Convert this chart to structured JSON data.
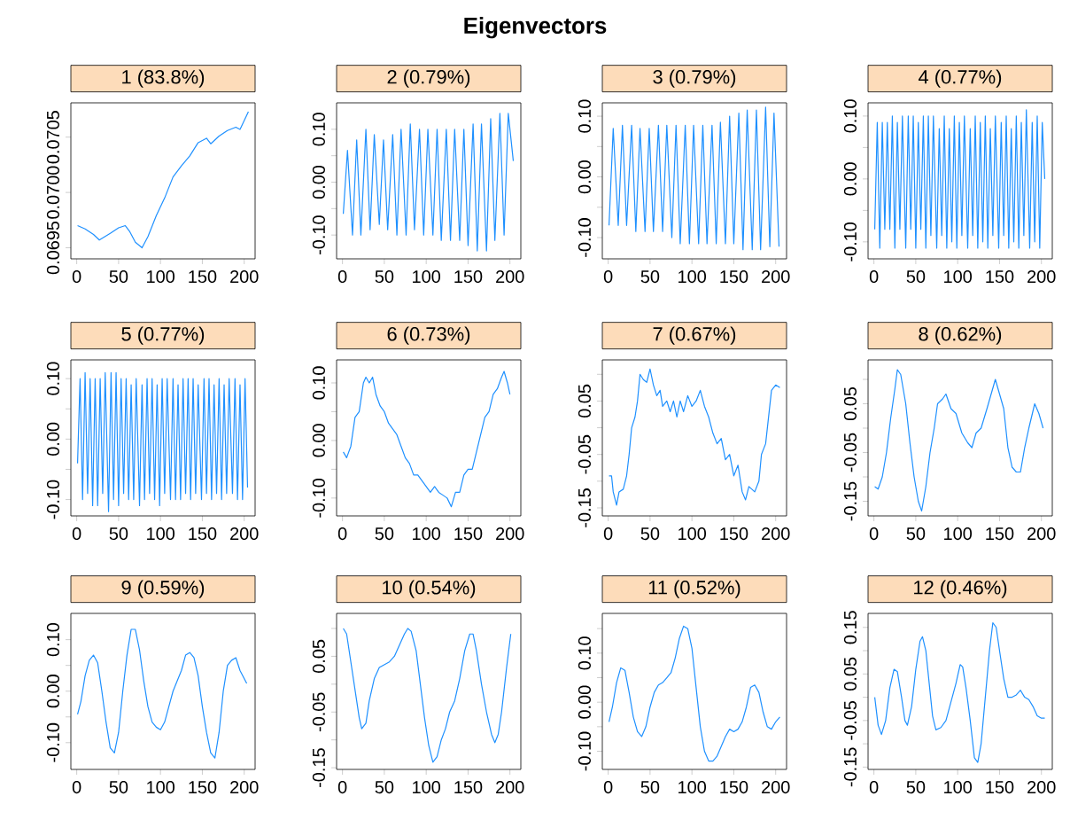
{
  "chart_data": [
    {
      "type": "line",
      "title": "1 (83.8%)",
      "annotations": [
        "Eigenvectors"
      ],
      "color": "#1e90ff",
      "xlim": [
        -7,
        213
      ],
      "xticks": [
        0,
        50,
        100,
        150,
        200
      ],
      "ylim": [
        0.0694,
        0.07081
      ],
      "yticks": [
        0.0695,
        {
          "value": 0.07,
          "label": "0.0700"
        },
        0.0705
      ],
      "x": [
        1,
        10,
        20,
        27,
        40,
        50,
        58,
        63,
        70,
        78,
        85,
        95,
        105,
        115,
        125,
        135,
        145,
        155,
        160,
        170,
        180,
        190,
        195,
        205
      ],
      "values": [
        0.0697,
        0.06967,
        0.06962,
        0.06957,
        0.06963,
        0.06968,
        0.0697,
        0.06965,
        0.06955,
        0.0695,
        0.0696,
        0.06979,
        0.06995,
        0.07014,
        0.07024,
        0.07033,
        0.07045,
        0.07049,
        0.07044,
        0.07051,
        0.07056,
        0.07059,
        0.07057,
        0.07073
      ]
    },
    {
      "type": "line",
      "title": "2 (0.79%)",
      "color": "#1e90ff",
      "xlim": [
        -7,
        213
      ],
      "xticks": [
        0,
        50,
        100,
        150,
        200
      ],
      "ylim": [
        -0.145,
        0.15
      ],
      "yticks": [
        {
          "value": -0.1,
          "label": "-0.10"
        },
        {
          "value": -0.05,
          "label": null
        },
        {
          "value": 0,
          "label": "0.00"
        },
        {
          "value": 0.05,
          "label": null
        },
        {
          "value": 0.1,
          "label": "0.10"
        }
      ],
      "x": [
        1,
        6,
        12,
        17,
        22,
        28,
        33,
        38,
        44,
        49,
        54,
        60,
        65,
        70,
        76,
        81,
        86,
        92,
        97,
        102,
        108,
        113,
        118,
        124,
        129,
        134,
        140,
        145,
        150,
        156,
        161,
        166,
        172,
        177,
        182,
        188,
        193,
        198,
        204
      ],
      "values": [
        -0.06,
        0.06,
        -0.1,
        0.08,
        -0.1,
        0.1,
        -0.09,
        0.09,
        -0.08,
        0.08,
        -0.09,
        0.09,
        -0.1,
        0.1,
        -0.1,
        0.11,
        -0.09,
        0.1,
        -0.1,
        0.1,
        -0.1,
        0.1,
        -0.11,
        0.1,
        -0.11,
        0.1,
        -0.11,
        0.1,
        -0.12,
        0.11,
        -0.13,
        0.11,
        -0.13,
        0.12,
        -0.11,
        0.13,
        -0.1,
        0.13,
        0.04
      ]
    },
    {
      "type": "line",
      "title": "3 (0.79%)",
      "color": "#1e90ff",
      "xlim": [
        -7,
        213
      ],
      "xticks": [
        0,
        50,
        100,
        150,
        200
      ],
      "ylim": [
        -0.135,
        0.122
      ],
      "yticks": [
        {
          "value": -0.1,
          "label": "-0.10"
        },
        {
          "value": -0.05,
          "label": null
        },
        {
          "value": 0,
          "label": "0.00"
        },
        {
          "value": 0.05,
          "label": null
        },
        {
          "value": 0.1,
          "label": "0.10"
        }
      ],
      "x": [
        1,
        6,
        12,
        17,
        22,
        28,
        33,
        38,
        44,
        49,
        54,
        60,
        65,
        70,
        76,
        81,
        86,
        92,
        97,
        102,
        108,
        113,
        118,
        124,
        129,
        134,
        140,
        145,
        150,
        156,
        161,
        166,
        172,
        177,
        182,
        188,
        193,
        198,
        204
      ],
      "values": [
        -0.08,
        0.08,
        -0.08,
        0.085,
        -0.08,
        0.085,
        -0.09,
        0.08,
        -0.09,
        0.08,
        -0.09,
        0.085,
        -0.09,
        0.085,
        -0.1,
        0.085,
        -0.11,
        0.085,
        -0.11,
        0.085,
        -0.11,
        0.085,
        -0.11,
        0.085,
        -0.11,
        0.09,
        -0.11,
        0.1,
        -0.11,
        0.105,
        -0.12,
        0.11,
        -0.12,
        0.11,
        -0.12,
        0.115,
        -0.115,
        0.105,
        -0.115
      ]
    },
    {
      "type": "line",
      "title": "4 (0.77%)",
      "color": "#1e90ff",
      "xlim": [
        -7,
        213
      ],
      "xticks": [
        0,
        50,
        100,
        150,
        200
      ],
      "ylim": [
        -0.127,
        0.121
      ],
      "yticks": [
        {
          "value": -0.1,
          "label": "-0.10"
        },
        {
          "value": -0.05,
          "label": null
        },
        {
          "value": 0,
          "label": "0.00"
        },
        {
          "value": 0.05,
          "label": null
        },
        {
          "value": 0.1,
          "label": "0.10"
        }
      ],
      "x": [
        1,
        4,
        7,
        10,
        13,
        16,
        19,
        22,
        25,
        28,
        31,
        34,
        38,
        41,
        44,
        47,
        50,
        53,
        56,
        59,
        62,
        65,
        68,
        71,
        75,
        78,
        81,
        84,
        87,
        90,
        93,
        96,
        99,
        102,
        105,
        108,
        112,
        115,
        118,
        121,
        124,
        127,
        130,
        133,
        136,
        139,
        142,
        145,
        149,
        152,
        155,
        158,
        161,
        164,
        167,
        170,
        173,
        176,
        179,
        182,
        186,
        189,
        192,
        195,
        198,
        201,
        204
      ],
      "values": [
        -0.08,
        0.09,
        -0.11,
        0.09,
        -0.08,
        0.09,
        -0.08,
        0.1,
        -0.11,
        0.09,
        -0.08,
        0.1,
        -0.11,
        0.1,
        -0.08,
        0.1,
        -0.11,
        0.09,
        -0.08,
        0.1,
        -0.11,
        0.1,
        -0.09,
        0.1,
        -0.11,
        0.08,
        -0.09,
        0.1,
        -0.11,
        0.08,
        -0.1,
        0.1,
        -0.11,
        0.09,
        -0.09,
        0.1,
        -0.11,
        0.08,
        -0.09,
        0.1,
        -0.11,
        0.09,
        -0.1,
        0.1,
        -0.11,
        0.08,
        -0.09,
        0.1,
        -0.11,
        0.09,
        -0.09,
        0.1,
        -0.11,
        0.08,
        -0.1,
        0.1,
        -0.11,
        0.09,
        -0.09,
        0.11,
        -0.11,
        0.09,
        -0.1,
        0.1,
        -0.11,
        0.09,
        0.0
      ]
    },
    {
      "type": "line",
      "title": "5 (0.77%)",
      "color": "#1e90ff",
      "xlim": [
        -7,
        213
      ],
      "xticks": [
        0,
        50,
        100,
        150,
        200
      ],
      "ylim": [
        -0.127,
        0.131
      ],
      "yticks": [
        {
          "value": -0.1,
          "label": "-0.10"
        },
        {
          "value": -0.05,
          "label": null
        },
        {
          "value": 0,
          "label": "0.00"
        },
        {
          "value": 0.05,
          "label": null
        },
        {
          "value": 0.1,
          "label": "0.10"
        }
      ],
      "x": [
        1,
        4,
        7,
        10,
        13,
        16,
        19,
        22,
        25,
        28,
        31,
        34,
        38,
        41,
        44,
        47,
        50,
        53,
        56,
        59,
        62,
        65,
        68,
        71,
        75,
        78,
        81,
        84,
        87,
        90,
        93,
        96,
        99,
        102,
        105,
        108,
        112,
        115,
        118,
        121,
        124,
        127,
        130,
        133,
        136,
        139,
        142,
        145,
        149,
        152,
        155,
        158,
        161,
        164,
        167,
        170,
        173,
        176,
        179,
        182,
        186,
        189,
        192,
        195,
        198,
        201,
        204
      ],
      "values": [
        -0.04,
        0.1,
        -0.1,
        0.11,
        -0.09,
        0.1,
        -0.11,
        0.1,
        -0.11,
        0.1,
        -0.09,
        0.11,
        -0.12,
        0.11,
        -0.1,
        0.11,
        -0.11,
        0.1,
        -0.09,
        0.1,
        -0.1,
        0.09,
        -0.1,
        0.1,
        -0.11,
        0.09,
        -0.1,
        0.1,
        -0.09,
        0.1,
        -0.1,
        0.09,
        -0.11,
        0.1,
        -0.09,
        0.1,
        -0.1,
        0.1,
        -0.1,
        0.09,
        -0.1,
        0.1,
        -0.09,
        0.1,
        -0.1,
        0.1,
        -0.09,
        0.09,
        -0.1,
        0.1,
        -0.09,
        0.1,
        -0.1,
        0.09,
        -0.09,
        0.1,
        -0.1,
        0.09,
        -0.09,
        0.1,
        -0.09,
        0.1,
        -0.1,
        0.09,
        -0.1,
        0.1,
        -0.08
      ]
    },
    {
      "type": "line",
      "title": "6 (0.73%)",
      "color": "#1e90ff",
      "xlim": [
        -7,
        213
      ],
      "xticks": [
        0,
        50,
        100,
        150,
        200
      ],
      "ylim": [
        -0.131,
        0.14
      ],
      "yticks": [
        {
          "value": -0.1,
          "label": "-0.10"
        },
        {
          "value": -0.05,
          "label": null
        },
        {
          "value": 0,
          "label": "0.00"
        },
        {
          "value": 0.05,
          "label": null
        },
        {
          "value": 0.1,
          "label": "0.10"
        }
      ],
      "x": [
        1,
        5,
        10,
        15,
        20,
        25,
        28,
        32,
        36,
        40,
        45,
        50,
        55,
        60,
        65,
        70,
        75,
        80,
        85,
        90,
        95,
        100,
        105,
        110,
        115,
        120,
        125,
        130,
        135,
        140,
        145,
        150,
        155,
        160,
        165,
        170,
        175,
        180,
        185,
        190,
        193,
        197,
        200
      ],
      "values": [
        -0.02,
        -0.03,
        -0.01,
        0.04,
        0.05,
        0.1,
        0.11,
        0.1,
        0.11,
        0.08,
        0.06,
        0.05,
        0.03,
        0.02,
        0.01,
        -0.01,
        -0.03,
        -0.04,
        -0.06,
        -0.06,
        -0.07,
        -0.08,
        -0.09,
        -0.08,
        -0.09,
        -0.095,
        -0.1,
        -0.115,
        -0.09,
        -0.09,
        -0.06,
        -0.05,
        -0.05,
        -0.02,
        0.01,
        0.04,
        0.05,
        0.08,
        0.09,
        0.11,
        0.12,
        0.1,
        0.08
      ]
    },
    {
      "type": "line",
      "title": "7 (0.67%)",
      "color": "#1e90ff",
      "xlim": [
        -7,
        213
      ],
      "xticks": [
        0,
        50,
        100,
        150,
        200
      ],
      "ylim": [
        -0.165,
        0.127
      ],
      "yticks": [
        {
          "value": -0.15,
          "label": "-0.15"
        },
        {
          "value": -0.1,
          "label": null
        },
        {
          "value": -0.05,
          "label": "-0.05"
        },
        {
          "value": 0,
          "label": null
        },
        {
          "value": 0.05,
          "label": "0.05"
        },
        {
          "value": 0.1,
          "label": null
        }
      ],
      "x": [
        1,
        4,
        6,
        10,
        13,
        18,
        22,
        25,
        28,
        32,
        35,
        38,
        42,
        46,
        50,
        54,
        58,
        62,
        65,
        70,
        74,
        78,
        82,
        86,
        90,
        95,
        100,
        105,
        110,
        115,
        120,
        125,
        130,
        135,
        140,
        145,
        150,
        155,
        160,
        164,
        168,
        175,
        180,
        183,
        188,
        195,
        200,
        205
      ],
      "values": [
        -0.09,
        -0.09,
        -0.12,
        -0.145,
        -0.12,
        -0.115,
        -0.09,
        -0.05,
        0.0,
        0.02,
        0.05,
        0.1,
        0.09,
        0.085,
        0.11,
        0.08,
        0.06,
        0.07,
        0.04,
        0.05,
        0.03,
        0.05,
        0.02,
        0.05,
        0.03,
        0.06,
        0.04,
        0.05,
        0.07,
        0.04,
        0.02,
        -0.01,
        -0.03,
        -0.02,
        -0.06,
        -0.05,
        -0.09,
        -0.07,
        -0.12,
        -0.135,
        -0.11,
        -0.12,
        -0.1,
        -0.05,
        -0.03,
        0.07,
        0.08,
        0.075
      ]
    },
    {
      "type": "line",
      "title": "8 (0.62%)",
      "color": "#1e90ff",
      "xlim": [
        -7,
        213
      ],
      "xticks": [
        0,
        50,
        100,
        150,
        200
      ],
      "ylim": [
        -0.18,
        0.14
      ],
      "yticks": [
        {
          "value": -0.15,
          "label": "-0.15"
        },
        {
          "value": -0.1,
          "label": null
        },
        {
          "value": -0.05,
          "label": "-0.05"
        },
        {
          "value": 0,
          "label": null
        },
        {
          "value": 0.05,
          "label": "0.05"
        },
        {
          "value": 0.1,
          "label": null
        }
      ],
      "x": [
        1,
        5,
        10,
        15,
        20,
        25,
        28,
        32,
        38,
        43,
        48,
        53,
        57,
        62,
        67,
        72,
        76,
        82,
        86,
        92,
        98,
        105,
        112,
        117,
        122,
        128,
        135,
        140,
        145,
        150,
        155,
        160,
        165,
        170,
        175,
        180,
        185,
        192,
        197,
        202
      ],
      "values": [
        -0.12,
        -0.125,
        -0.1,
        -0.05,
        0.02,
        0.08,
        0.12,
        0.11,
        0.05,
        -0.03,
        -0.1,
        -0.15,
        -0.17,
        -0.12,
        -0.05,
        0.0,
        0.05,
        0.06,
        0.07,
        0.04,
        0.03,
        -0.01,
        -0.03,
        -0.04,
        -0.01,
        0.0,
        0.04,
        0.07,
        0.1,
        0.07,
        0.04,
        -0.04,
        -0.08,
        -0.09,
        -0.09,
        -0.04,
        0.0,
        0.05,
        0.03,
        0.0
      ]
    },
    {
      "type": "line",
      "title": "9 (0.59%)",
      "color": "#1e90ff",
      "xlim": [
        -7,
        213
      ],
      "xticks": [
        0,
        50,
        100,
        150,
        200
      ],
      "ylim": [
        -0.152,
        0.151
      ],
      "yticks": [
        {
          "value": -0.1,
          "label": "-0.10"
        },
        {
          "value": -0.05,
          "label": null
        },
        {
          "value": 0,
          "label": "0.00"
        },
        {
          "value": 0.05,
          "label": null
        },
        {
          "value": 0.1,
          "label": "0.10"
        }
      ],
      "x": [
        1,
        5,
        10,
        15,
        20,
        25,
        30,
        35,
        40,
        45,
        50,
        55,
        60,
        65,
        70,
        75,
        80,
        85,
        90,
        95,
        100,
        105,
        110,
        115,
        120,
        125,
        130,
        135,
        140,
        145,
        150,
        155,
        160,
        165,
        170,
        175,
        180,
        185,
        190,
        195,
        203
      ],
      "values": [
        -0.045,
        -0.02,
        0.03,
        0.06,
        0.07,
        0.055,
        0.0,
        -0.06,
        -0.11,
        -0.12,
        -0.08,
        0.0,
        0.07,
        0.12,
        0.12,
        0.08,
        0.02,
        -0.03,
        -0.06,
        -0.07,
        -0.075,
        -0.06,
        -0.03,
        0.0,
        0.02,
        0.04,
        0.07,
        0.075,
        0.065,
        0.03,
        -0.03,
        -0.08,
        -0.12,
        -0.13,
        -0.08,
        0.0,
        0.05,
        0.06,
        0.065,
        0.04,
        0.015
      ]
    },
    {
      "type": "line",
      "title": "10 (0.54%)",
      "color": "#1e90ff",
      "xlim": [
        -7,
        213
      ],
      "xticks": [
        0,
        50,
        100,
        150,
        200
      ],
      "ylim": [
        -0.153,
        0.127
      ],
      "yticks": [
        {
          "value": -0.15,
          "label": "-0.15"
        },
        {
          "value": -0.1,
          "label": null
        },
        {
          "value": -0.05,
          "label": "-0.05"
        },
        {
          "value": 0,
          "label": null
        },
        {
          "value": 0.05,
          "label": "0.05"
        },
        {
          "value": 0.1,
          "label": null
        }
      ],
      "x": [
        1,
        5,
        10,
        15,
        20,
        23,
        28,
        32,
        38,
        44,
        50,
        56,
        62,
        68,
        74,
        78,
        82,
        88,
        93,
        98,
        103,
        108,
        113,
        118,
        123,
        128,
        134,
        140,
        146,
        152,
        156,
        160,
        166,
        172,
        178,
        182,
        186,
        190,
        196,
        201
      ],
      "values": [
        0.1,
        0.09,
        0.04,
        -0.01,
        -0.06,
        -0.08,
        -0.07,
        -0.03,
        0.01,
        0.03,
        0.035,
        0.04,
        0.05,
        0.07,
        0.09,
        0.1,
        0.095,
        0.06,
        0.0,
        -0.06,
        -0.11,
        -0.14,
        -0.13,
        -0.1,
        -0.08,
        -0.05,
        -0.03,
        0.01,
        0.06,
        0.09,
        0.09,
        0.06,
        0.0,
        -0.05,
        -0.09,
        -0.105,
        -0.09,
        -0.05,
        0.03,
        0.09
      ]
    },
    {
      "type": "line",
      "title": "11 (0.52%)",
      "color": "#1e90ff",
      "xlim": [
        -7,
        213
      ],
      "xticks": [
        0,
        50,
        100,
        150,
        200
      ],
      "ylim": [
        -0.137,
        0.181
      ],
      "yticks": [
        {
          "value": -0.1,
          "label": "-0.10"
        },
        {
          "value": -0.05,
          "label": null
        },
        {
          "value": 0,
          "label": "0.00"
        },
        {
          "value": 0.05,
          "label": null
        },
        {
          "value": 0.1,
          "label": "0.10"
        },
        {
          "value": 0.15,
          "label": null
        }
      ],
      "x": [
        1,
        5,
        10,
        15,
        20,
        25,
        30,
        35,
        40,
        45,
        50,
        55,
        60,
        65,
        70,
        75,
        80,
        85,
        90,
        95,
        100,
        105,
        110,
        115,
        120,
        125,
        130,
        135,
        140,
        145,
        150,
        155,
        160,
        165,
        170,
        175,
        180,
        185,
        190,
        195,
        200,
        205
      ],
      "values": [
        -0.04,
        -0.01,
        0.04,
        0.07,
        0.065,
        0.02,
        -0.03,
        -0.06,
        -0.07,
        -0.05,
        -0.01,
        0.02,
        0.035,
        0.04,
        0.05,
        0.06,
        0.09,
        0.13,
        0.155,
        0.15,
        0.11,
        0.03,
        -0.05,
        -0.1,
        -0.12,
        -0.12,
        -0.11,
        -0.09,
        -0.07,
        -0.055,
        -0.06,
        -0.055,
        -0.04,
        -0.01,
        0.03,
        0.035,
        0.02,
        -0.02,
        -0.05,
        -0.055,
        -0.04,
        -0.03
      ]
    },
    {
      "type": "line",
      "title": "12 (0.46%)",
      "color": "#1e90ff",
      "xlim": [
        -7,
        213
      ],
      "xticks": [
        0,
        50,
        100,
        150,
        200
      ],
      "ylim": [
        -0.155,
        0.18
      ],
      "yticks": [
        {
          "value": -0.15,
          "label": "-0.15"
        },
        {
          "value": -0.1,
          "label": null
        },
        {
          "value": -0.05,
          "label": "-0.05"
        },
        {
          "value": 0,
          "label": null
        },
        {
          "value": 0.05,
          "label": "0.05"
        },
        {
          "value": 0.1,
          "label": null
        },
        {
          "value": 0.15,
          "label": "0.15"
        }
      ],
      "x": [
        1,
        5,
        9,
        14,
        19,
        24,
        28,
        33,
        37,
        40,
        45,
        50,
        55,
        58,
        62,
        66,
        70,
        74,
        80,
        86,
        92,
        98,
        103,
        106,
        110,
        115,
        120,
        124,
        128,
        133,
        138,
        142,
        146,
        150,
        155,
        160,
        165,
        170,
        175,
        180,
        185,
        190,
        195,
        200,
        204
      ],
      "values": [
        0.0,
        -0.06,
        -0.08,
        -0.05,
        0.02,
        0.06,
        0.055,
        0.0,
        -0.05,
        -0.06,
        -0.02,
        0.06,
        0.12,
        0.13,
        0.1,
        0.03,
        -0.04,
        -0.07,
        -0.065,
        -0.05,
        -0.01,
        0.03,
        0.07,
        0.065,
        0.02,
        -0.05,
        -0.13,
        -0.14,
        -0.1,
        0.0,
        0.1,
        0.16,
        0.15,
        0.1,
        0.04,
        0.0,
        0.0,
        0.005,
        0.015,
        0.0,
        -0.005,
        -0.02,
        -0.04,
        -0.045,
        -0.045
      ]
    }
  ]
}
